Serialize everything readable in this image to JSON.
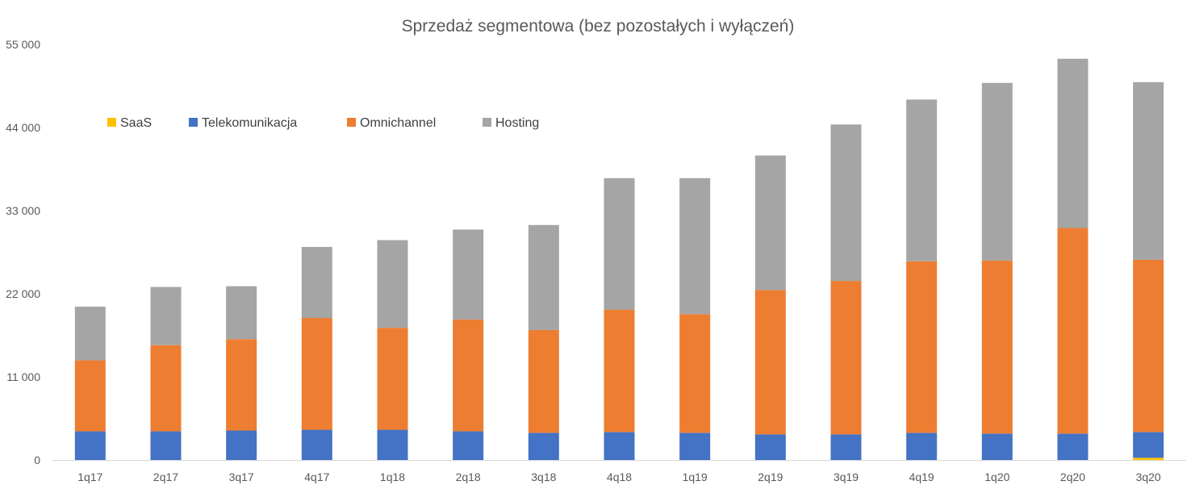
{
  "chart_data": {
    "type": "bar",
    "stacked": true,
    "title": "Sprzedaż segmentowa (bez pozostałych i wyłączeń)",
    "xlabel": "",
    "ylabel": "",
    "ylim": [
      0,
      55000
    ],
    "y_ticks": [
      0,
      11000,
      22000,
      33000,
      44000,
      55000
    ],
    "y_tick_labels": [
      "0",
      "11 000",
      "22 000",
      "33 000",
      "44 000",
      "55 000"
    ],
    "grid": false,
    "legend_position": "top-left",
    "categories": [
      "1q17",
      "2q17",
      "3q17",
      "4q17",
      "1q18",
      "2q18",
      "3q18",
      "4q18",
      "1q19",
      "2q19",
      "3q19",
      "4q19",
      "1q20",
      "2q20",
      "3q20"
    ],
    "series": [
      {
        "name": "SaaS",
        "color": "#FFC000",
        "values": [
          0,
          0,
          0,
          0,
          0,
          0,
          0,
          0,
          0,
          0,
          0,
          0,
          0,
          0,
          300
        ]
      },
      {
        "name": "Telekomunikacja",
        "color": "#4472C4",
        "values": [
          3800,
          3800,
          3900,
          4000,
          4000,
          3800,
          3600,
          3700,
          3600,
          3400,
          3400,
          3600,
          3500,
          3500,
          3400
        ]
      },
      {
        "name": "Omnichannel",
        "color": "#ED7D31",
        "values": [
          9400,
          11400,
          12100,
          14800,
          13500,
          14800,
          13600,
          16200,
          15700,
          19100,
          20300,
          22700,
          22900,
          27200,
          22800
        ]
      },
      {
        "name": "Hosting",
        "color": "#A5A5A5",
        "values": [
          7100,
          7700,
          7000,
          9400,
          11600,
          11900,
          13900,
          17400,
          18000,
          17800,
          20700,
          21400,
          23500,
          22400,
          23500
        ]
      }
    ],
    "legend_order": [
      "SaaS",
      "Telekomunikacja",
      "Omnichannel",
      "Hosting"
    ]
  },
  "colors": {
    "axis_line": "#D9D9D9",
    "text": "#595959"
  }
}
